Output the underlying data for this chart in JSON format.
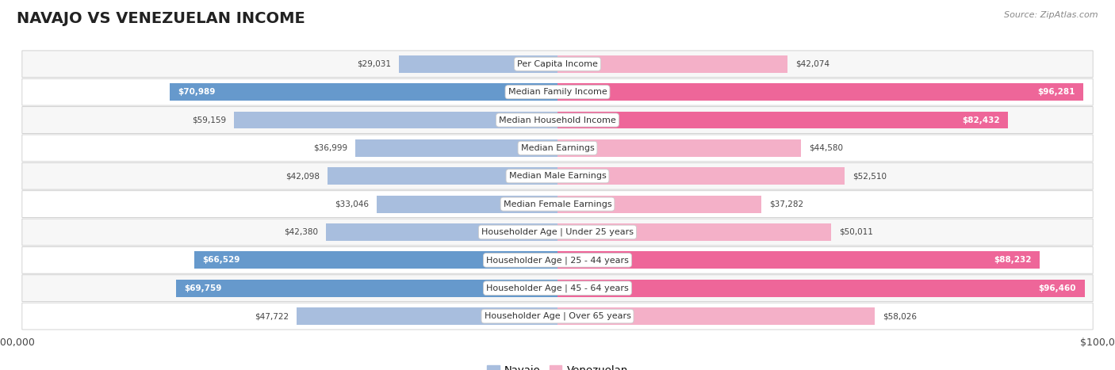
{
  "title": "NAVAJO VS VENEZUELAN INCOME",
  "source": "Source: ZipAtlas.com",
  "categories": [
    "Per Capita Income",
    "Median Family Income",
    "Median Household Income",
    "Median Earnings",
    "Median Male Earnings",
    "Median Female Earnings",
    "Householder Age | Under 25 years",
    "Householder Age | 25 - 44 years",
    "Householder Age | 45 - 64 years",
    "Householder Age | Over 65 years"
  ],
  "navajo_values": [
    29031,
    70989,
    59159,
    36999,
    42098,
    33046,
    42380,
    66529,
    69759,
    47722
  ],
  "venezuelan_values": [
    42074,
    96281,
    82432,
    44580,
    52510,
    37282,
    50011,
    88232,
    96460,
    58026
  ],
  "navajo_color_light": "#a8bede",
  "navajo_color_dark": "#6699cc",
  "venezuelan_color_light": "#f4b0c8",
  "venezuelan_color_dark": "#ee6699",
  "axis_max": 100000,
  "bg_color": "#ffffff",
  "row_bg_even": "#f7f7f7",
  "row_bg_odd": "#ffffff",
  "label_fontsize": 8.0,
  "title_fontsize": 14,
  "value_fontsize": 7.5,
  "source_fontsize": 8,
  "legend_navajo": "Navajo",
  "legend_venezuelan": "Venezuelan",
  "threshold": 60000
}
